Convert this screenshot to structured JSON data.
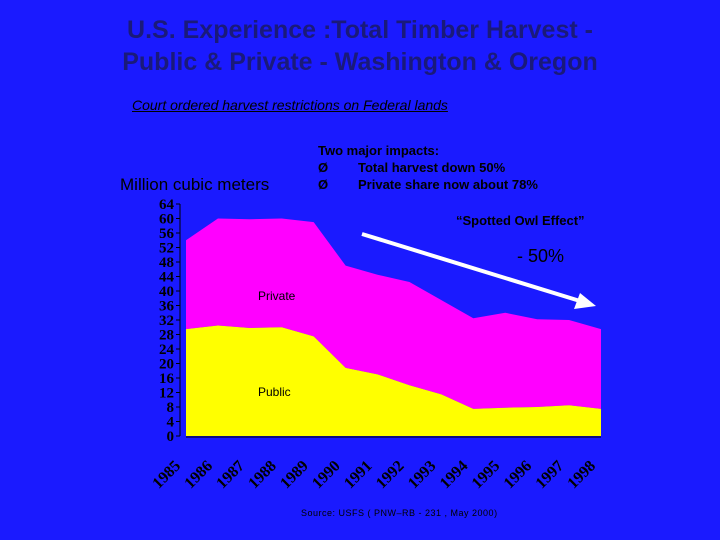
{
  "slide": {
    "title_line1": "U.S. Experience :Total Timber Harvest -",
    "title_line2": "Public & Private - Washington & Oregon",
    "subtitle": "Court ordered harvest restrictions on Federal lands",
    "impacts_heading": "Two major impacts:",
    "impacts": [
      "Total harvest down 50%",
      "Private share now about 78%"
    ],
    "bullet_glyph": "Ø",
    "annotation_effect": "“Spotted Owl Effect”",
    "annotation_pct": "- 50%",
    "source": "Source: USFS ( PNW–RB - 231 , May 2000)",
    "colors": {
      "background": "#1a1aff",
      "title": "#1a1a7a",
      "private": "#ff00ff",
      "public": "#ffff00",
      "arrow": "#ffffff"
    }
  },
  "chart_data": {
    "type": "area",
    "stacked": true,
    "ylabel": "Million cubic meters",
    "ylim": [
      0,
      64
    ],
    "yticks": [
      0,
      4,
      8,
      12,
      16,
      20,
      24,
      28,
      32,
      36,
      40,
      44,
      48,
      52,
      56,
      60,
      64
    ],
    "x": [
      "1985",
      "1986",
      "1987",
      "1988",
      "1989",
      "1990",
      "1991",
      "1992",
      "1993",
      "1994",
      "1995",
      "1996",
      "1997",
      "1998"
    ],
    "series": [
      {
        "name": "Public",
        "values": [
          29.5,
          30.5,
          29.8,
          30.0,
          27.5,
          18.8,
          17.0,
          14.0,
          11.5,
          7.5,
          7.8,
          8.0,
          8.5,
          7.5
        ]
      },
      {
        "name": "Private",
        "values": [
          24.5,
          29.5,
          30.0,
          30.0,
          31.5,
          28.2,
          27.5,
          28.5,
          26.0,
          25.0,
          26.2,
          24.2,
          23.5,
          22.0
        ]
      }
    ],
    "grid": false,
    "legend": "inline"
  }
}
